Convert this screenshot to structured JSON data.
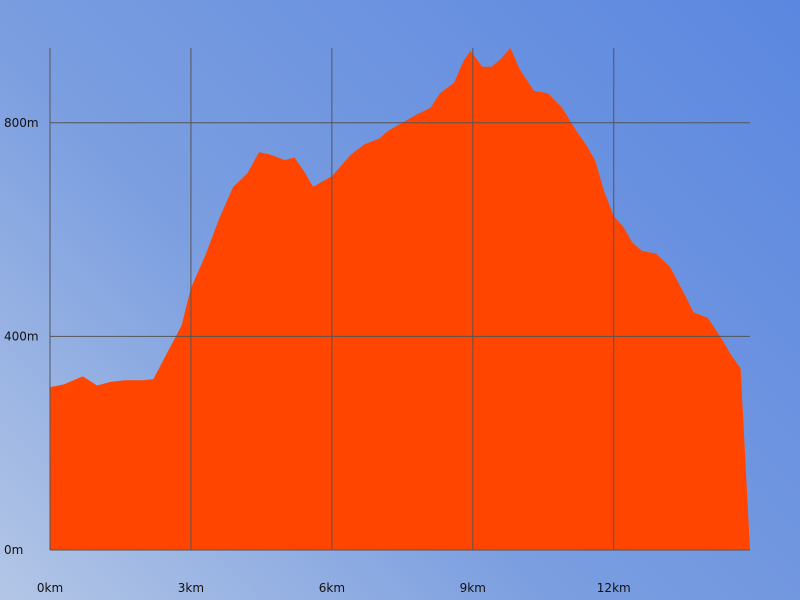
{
  "chart_data": {
    "type": "area",
    "title": "",
    "xlabel": "",
    "ylabel": "",
    "xlim": [
      0,
      14.9
    ],
    "ylim": [
      0,
      940
    ],
    "grid": true,
    "x_ticks": [
      {
        "value": 0,
        "label": "0km"
      },
      {
        "value": 3,
        "label": "3km"
      },
      {
        "value": 6,
        "label": "6km"
      },
      {
        "value": 9,
        "label": "9km"
      },
      {
        "value": 12,
        "label": "12km"
      }
    ],
    "y_ticks": [
      {
        "value": 0,
        "label": "0m"
      },
      {
        "value": 400,
        "label": "400m"
      },
      {
        "value": 800,
        "label": "800m"
      }
    ],
    "series": [
      {
        "color": "#ff4500",
        "points": [
          [
            0.0,
            305
          ],
          [
            0.3,
            310
          ],
          [
            0.5,
            318
          ],
          [
            0.7,
            325
          ],
          [
            1.0,
            308
          ],
          [
            1.3,
            315
          ],
          [
            1.6,
            318
          ],
          [
            2.0,
            318
          ],
          [
            2.2,
            320
          ],
          [
            2.5,
            370
          ],
          [
            2.8,
            420
          ],
          [
            3.0,
            490
          ],
          [
            3.3,
            550
          ],
          [
            3.6,
            620
          ],
          [
            3.9,
            680
          ],
          [
            4.2,
            705
          ],
          [
            4.45,
            745
          ],
          [
            4.7,
            740
          ],
          [
            5.0,
            730
          ],
          [
            5.2,
            735
          ],
          [
            5.4,
            710
          ],
          [
            5.6,
            680
          ],
          [
            5.8,
            690
          ],
          [
            6.0,
            700
          ],
          [
            6.2,
            720
          ],
          [
            6.4,
            740
          ],
          [
            6.7,
            760
          ],
          [
            7.0,
            770
          ],
          [
            7.2,
            785
          ],
          [
            7.5,
            800
          ],
          [
            7.8,
            815
          ],
          [
            8.1,
            828
          ],
          [
            8.3,
            855
          ],
          [
            8.6,
            875
          ],
          [
            8.8,
            915
          ],
          [
            8.95,
            935
          ],
          [
            9.2,
            905
          ],
          [
            9.4,
            905
          ],
          [
            9.6,
            920
          ],
          [
            9.8,
            940
          ],
          [
            10.0,
            900
          ],
          [
            10.3,
            860
          ],
          [
            10.6,
            855
          ],
          [
            10.9,
            828
          ],
          [
            11.2,
            785
          ],
          [
            11.4,
            760
          ],
          [
            11.6,
            730
          ],
          [
            11.8,
            670
          ],
          [
            12.0,
            625
          ],
          [
            12.2,
            605
          ],
          [
            12.4,
            575
          ],
          [
            12.6,
            560
          ],
          [
            12.9,
            555
          ],
          [
            13.2,
            530
          ],
          [
            13.5,
            480
          ],
          [
            13.7,
            445
          ],
          [
            14.0,
            435
          ],
          [
            14.3,
            395
          ],
          [
            14.5,
            365
          ],
          [
            14.7,
            340
          ],
          [
            14.9,
            0
          ]
        ]
      }
    ]
  }
}
